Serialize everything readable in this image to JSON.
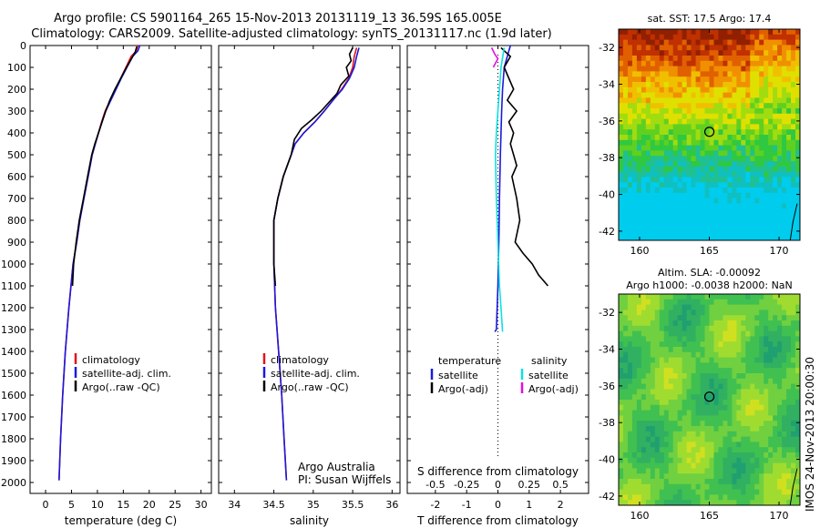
{
  "header": {
    "title_line1": "Argo profile: CS 5901164_265 15-Nov-2013 20131119_13 36.59S 165.005E",
    "title_line2": "Climatology: CARS2009. Satellite-adjusted climatology: synTS_20131117.nc (1.9d later)"
  },
  "footer": {
    "credit_line1": "Argo Australia",
    "credit_line2": "PI: Susan Wijffels",
    "imos_stamp": "IMOS 24-Nov-2013 20:00:30"
  },
  "colors": {
    "climatology": "#e0141e",
    "satellite": "#1a1adc",
    "argo": "#000000",
    "argo_salinity": "#e010e0",
    "satellite_salinity": "#10e0e0"
  },
  "chart_data": [
    {
      "id": "temperature",
      "type": "line",
      "xlabel": "temperature (deg C)",
      "xlim": [
        -3,
        32
      ],
      "xticks": [
        "0",
        "5",
        "10",
        "15",
        "20",
        "25",
        "30"
      ],
      "ylim": [
        2050,
        0
      ],
      "yticks": [
        "0",
        "100",
        "200",
        "300",
        "400",
        "500",
        "600",
        "700",
        "800",
        "900",
        "1000",
        "1100",
        "1200",
        "1300",
        "1400",
        "1500",
        "1600",
        "1700",
        "1800",
        "1900",
        "2000"
      ],
      "legend": [
        "climatology",
        "satellite-adj. clim.",
        "Argo(..raw -QC)"
      ],
      "series": [
        {
          "name": "climatology",
          "color_key": "climatology",
          "x": [
            17.8,
            17.5,
            16.5,
            15.5,
            14.5,
            13.5,
            12.5,
            11.5,
            10.8,
            10.2,
            9.6,
            9.0,
            8.2,
            7.4,
            6.6,
            6.0,
            5.3,
            4.5,
            3.8,
            3.3,
            2.9,
            2.6
          ],
          "y": [
            0,
            25,
            50,
            100,
            150,
            200,
            250,
            300,
            350,
            400,
            450,
            500,
            600,
            700,
            800,
            900,
            1000,
            1200,
            1400,
            1600,
            1800,
            1990
          ]
        },
        {
          "name": "satellite-adj. clim.",
          "color_key": "satellite",
          "x": [
            18.2,
            17.8,
            16.8,
            15.7,
            14.6,
            13.6,
            12.6,
            11.6,
            10.9,
            10.2,
            9.6,
            9.0,
            8.2,
            7.4,
            6.6,
            6.0,
            5.3,
            4.5,
            3.8,
            3.3,
            2.9,
            2.6
          ],
          "y": [
            0,
            25,
            50,
            100,
            150,
            200,
            250,
            300,
            350,
            400,
            450,
            500,
            600,
            700,
            800,
            900,
            1000,
            1200,
            1400,
            1600,
            1800,
            1990
          ]
        },
        {
          "name": "Argo(..raw -QC)",
          "color_key": "argo",
          "x": [
            17.6,
            17.3,
            16.6,
            15.6,
            14.5,
            13.4,
            12.4,
            11.6,
            10.9,
            10.2,
            9.5,
            8.9,
            8.1,
            7.3,
            6.5,
            5.9,
            5.4,
            5.2
          ],
          "y": [
            5,
            30,
            60,
            100,
            150,
            200,
            250,
            300,
            350,
            400,
            450,
            500,
            600,
            700,
            800,
            900,
            1000,
            1100
          ]
        }
      ]
    },
    {
      "id": "salinity",
      "type": "line",
      "xlabel": "salinity",
      "xlim": [
        33.8,
        36.1
      ],
      "xticks": [
        "34",
        "34.5",
        "35",
        "35.5",
        "36"
      ],
      "ylim": [
        2050,
        0
      ],
      "legend": [
        "climatology",
        "satellite-adj. clim.",
        "Argo(..raw -QC)"
      ],
      "series": [
        {
          "name": "climatology",
          "color_key": "climatology",
          "x": [
            35.55,
            35.52,
            35.5,
            35.45,
            35.36,
            35.25,
            35.14,
            35.02,
            34.88,
            34.77,
            34.72,
            34.62,
            34.55,
            34.5,
            34.5,
            34.5,
            34.52,
            34.56,
            34.6,
            34.63,
            34.66
          ],
          "y": [
            10,
            50,
            100,
            150,
            200,
            250,
            300,
            350,
            400,
            450,
            500,
            600,
            700,
            800,
            900,
            1000,
            1200,
            1400,
            1600,
            1800,
            1990
          ]
        },
        {
          "name": "satellite-adj. clim.",
          "color_key": "satellite",
          "x": [
            35.58,
            35.55,
            35.52,
            35.46,
            35.37,
            35.25,
            35.14,
            35.02,
            34.88,
            34.77,
            34.72,
            34.62,
            34.55,
            34.5,
            34.5,
            34.5,
            34.52,
            34.56,
            34.6,
            34.63,
            34.66
          ],
          "y": [
            10,
            50,
            100,
            150,
            200,
            250,
            300,
            350,
            400,
            450,
            500,
            600,
            700,
            800,
            900,
            1000,
            1200,
            1400,
            1600,
            1800,
            1990
          ]
        },
        {
          "name": "Argo(..raw -QC)",
          "color_key": "argo",
          "x": [
            35.5,
            35.46,
            35.48,
            35.42,
            35.45,
            35.35,
            35.3,
            35.2,
            35.1,
            34.98,
            34.85,
            34.76,
            34.72,
            34.62,
            34.55,
            34.5,
            34.5,
            34.5,
            34.52
          ],
          "y": [
            10,
            40,
            70,
            100,
            140,
            180,
            220,
            260,
            300,
            340,
            380,
            430,
            500,
            600,
            700,
            800,
            900,
            1000,
            1100
          ]
        }
      ]
    },
    {
      "id": "difference",
      "type": "line",
      "xlabel": "T difference from climatology",
      "xlabel_top": "S difference from climatology",
      "xlim": [
        -2.9,
        2.9
      ],
      "xticks": [
        "-2",
        "-1",
        "0",
        "1",
        "2"
      ],
      "xticks_top": [
        "-0.5",
        "-0.25",
        "0",
        "0.25",
        "0.5"
      ],
      "ylim": [
        2050,
        0
      ],
      "legend_headers": [
        "temperature",
        "salinity"
      ],
      "legend": [
        "satellite",
        "Argo(-adj)",
        "satellite",
        "Argo(-adj)"
      ],
      "series": [
        {
          "name": "satellite",
          "color_key": "satellite",
          "x": [
            0.4,
            0.3,
            0.2,
            0.15,
            0.12,
            0.1,
            0.08,
            0.05,
            0.03,
            0.0,
            -0.05,
            -0.1
          ],
          "y": [
            0,
            50,
            100,
            200,
            300,
            400,
            500,
            700,
            900,
            1100,
            1300,
            1310
          ]
        },
        {
          "name": "Argo(-adj)",
          "color_key": "argo",
          "x": [
            0.1,
            0.4,
            0.2,
            0.35,
            0.5,
            0.3,
            0.6,
            0.35,
            0.5,
            0.4,
            0.5,
            0.6,
            0.45,
            0.6,
            0.7,
            0.55,
            0.8,
            1.1,
            1.3,
            1.6
          ],
          "y": [
            10,
            50,
            100,
            150,
            200,
            250,
            300,
            350,
            400,
            450,
            500,
            550,
            600,
            700,
            800,
            900,
            950,
            1000,
            1050,
            1100
          ]
        },
        {
          "name": "satellite",
          "color_key": "satellite_salinity",
          "x": [
            0.2,
            0.1,
            0.05,
            0.0,
            -0.05,
            -0.08,
            -0.05,
            0.0,
            0.05,
            0.1,
            0.15
          ],
          "y": [
            10,
            100,
            200,
            300,
            400,
            500,
            700,
            900,
            1100,
            1200,
            1310
          ]
        },
        {
          "name": "Argo(-adj)",
          "color_key": "argo_salinity",
          "x": [
            -0.2,
            -0.1,
            0.0,
            -0.15
          ],
          "y": [
            10,
            40,
            60,
            100
          ]
        }
      ]
    },
    {
      "id": "sst_map",
      "type": "heatmap",
      "title": "sat. SST: 17.5 Argo: 17.4",
      "xlim": [
        158.5,
        171.5
      ],
      "ylim": [
        -42.5,
        -31
      ],
      "xticks": [
        "160",
        "165",
        "170"
      ],
      "yticks": [
        "-32",
        "-34",
        "-36",
        "-38",
        "-40",
        "-42"
      ],
      "marker": {
        "lon": 165.005,
        "lat": -36.59
      }
    },
    {
      "id": "sla_map",
      "type": "heatmap",
      "title": "Altim. SLA: -0.00092",
      "subtitle": "Argo h1000: -0.0038 h2000: NaN",
      "xlim": [
        158.5,
        171.5
      ],
      "ylim": [
        -42.5,
        -31
      ],
      "xticks": [
        "160",
        "165",
        "170"
      ],
      "yticks": [
        "-32",
        "-34",
        "-36",
        "-38",
        "-40",
        "-42"
      ],
      "marker": {
        "lon": 165.005,
        "lat": -36.59
      }
    }
  ]
}
